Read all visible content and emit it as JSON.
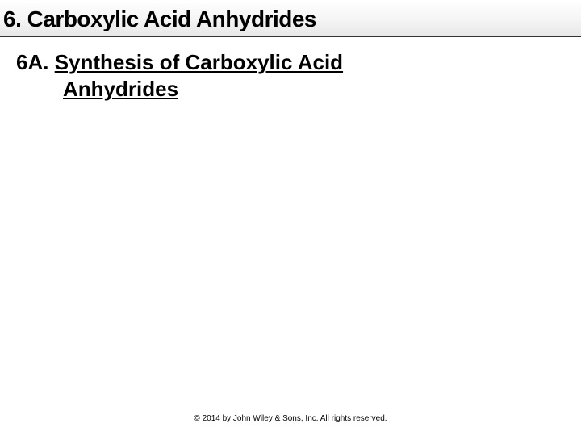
{
  "title": "6.   Carboxylic Acid Anhydrides",
  "subheading": {
    "prefix": "6A. ",
    "line1": "Synthesis of Carboxylic Acid",
    "line2": "Anhydrides"
  },
  "copyright": "© 2014 by John Wiley & Sons, Inc. All rights reserved.",
  "colors": {
    "background": "#ffffff",
    "text": "#000000",
    "titlebar_top": "#fdfdfd",
    "titlebar_bottom": "#e8e8e8",
    "title_border": "#333333"
  },
  "fontsize": {
    "title": 28,
    "subheading": 26,
    "copyright": 10
  }
}
